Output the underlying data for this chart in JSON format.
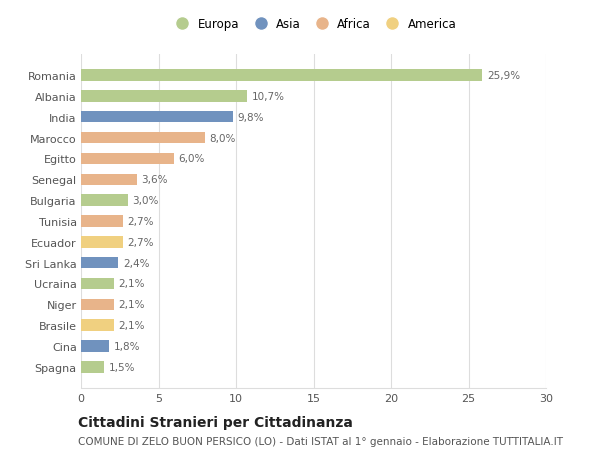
{
  "countries": [
    "Romania",
    "Albania",
    "India",
    "Marocco",
    "Egitto",
    "Senegal",
    "Bulgaria",
    "Tunisia",
    "Ecuador",
    "Sri Lanka",
    "Ucraina",
    "Niger",
    "Brasile",
    "Cina",
    "Spagna"
  ],
  "values": [
    25.9,
    10.7,
    9.8,
    8.0,
    6.0,
    3.6,
    3.0,
    2.7,
    2.7,
    2.4,
    2.1,
    2.1,
    2.1,
    1.8,
    1.5
  ],
  "labels": [
    "25,9%",
    "10,7%",
    "9,8%",
    "8,0%",
    "6,0%",
    "3,6%",
    "3,0%",
    "2,7%",
    "2,7%",
    "2,4%",
    "2,1%",
    "2,1%",
    "2,1%",
    "1,8%",
    "1,5%"
  ],
  "colors": [
    "#b5cc8e",
    "#b5cc8e",
    "#7092be",
    "#e8b48a",
    "#e8b48a",
    "#e8b48a",
    "#b5cc8e",
    "#e8b48a",
    "#f0d080",
    "#7092be",
    "#b5cc8e",
    "#e8b48a",
    "#f0d080",
    "#7092be",
    "#b5cc8e"
  ],
  "legend_labels": [
    "Europa",
    "Asia",
    "Africa",
    "America"
  ],
  "legend_colors": [
    "#b5cc8e",
    "#7092be",
    "#e8b48a",
    "#f0d080"
  ],
  "title": "Cittadini Stranieri per Cittadinanza",
  "subtitle": "COMUNE DI ZELO BUON PERSICO (LO) - Dati ISTAT al 1° gennaio - Elaborazione TUTTITALIA.IT",
  "xlim": [
    0,
    30
  ],
  "xticks": [
    0,
    5,
    10,
    15,
    20,
    25,
    30
  ],
  "background_color": "#ffffff",
  "grid_color": "#dddddd",
  "bar_height": 0.55,
  "title_fontsize": 10,
  "subtitle_fontsize": 7.5,
  "label_fontsize": 7.5,
  "tick_fontsize": 8,
  "legend_fontsize": 8.5
}
